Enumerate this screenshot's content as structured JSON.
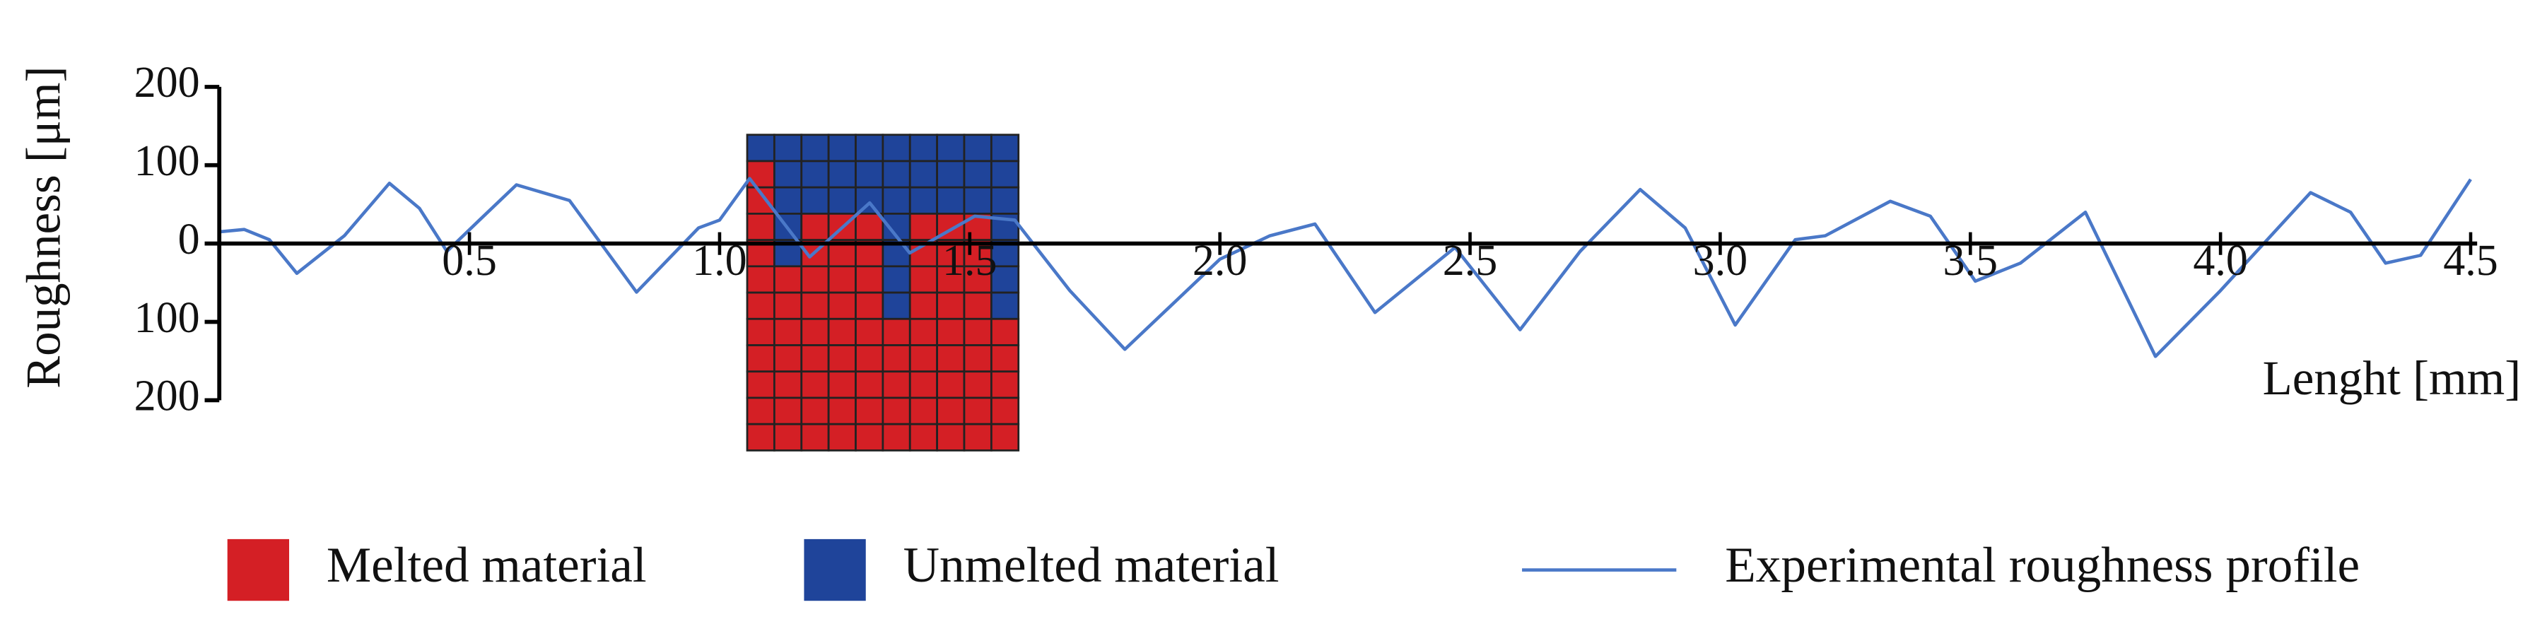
{
  "chart_data": {
    "type": "line",
    "x_label": "Lenght [mm]",
    "y_label": "Roughness [μm]",
    "xlim": [
      0,
      4.5
    ],
    "ylim": [
      -200,
      200
    ],
    "xticks": [
      0.5,
      {
        "value": 1,
        "label": "1.0"
      },
      1.5,
      {
        "value": 2,
        "label": "2.0"
      },
      2.5,
      {
        "value": 3,
        "label": "3.0"
      },
      3.5,
      {
        "value": 4,
        "label": "4.0"
      },
      4.5
    ],
    "yticks": [
      200,
      100,
      0,
      {
        "value": -100,
        "label": "100"
      },
      {
        "value": -200,
        "label": "200"
      }
    ],
    "legend_items": [
      {
        "name": "Melted material",
        "color": "#d41f25"
      },
      {
        "name": "Unmelted material",
        "color": "#1f449a"
      }
    ],
    "x": [
      0,
      0.05,
      0.1,
      0.155,
      0.25,
      0.34,
      0.4,
      0.455,
      0.52,
      0.594,
      0.7,
      0.834,
      0.958,
      1.0,
      1.06,
      1.18,
      1.3,
      1.38,
      1.51,
      1.59,
      1.7,
      1.81,
      2.0,
      2.1,
      2.19,
      2.31,
      2.47,
      2.6,
      2.72,
      2.84,
      2.93,
      3.03,
      3.15,
      3.21,
      3.34,
      3.42,
      3.51,
      3.6,
      3.73,
      3.87,
      4.0,
      4.18,
      4.26,
      4.33,
      4.4,
      4.5
    ],
    "series": [
      {
        "name": "Experimental roughness profile",
        "color": "#4a78c8",
        "values": [
          15,
          18,
          5,
          -38,
          10,
          77,
          45,
          -10,
          30,
          75,
          55,
          -62,
          20,
          30,
          83,
          -17,
          52,
          -12,
          35,
          30,
          -60,
          -135,
          -20,
          10,
          25,
          -88,
          -5,
          -110,
          -10,
          69,
          20,
          -104,
          5,
          10,
          54,
          35,
          -48,
          -25,
          40,
          -144,
          -60,
          65,
          40,
          -25,
          -15,
          82
        ]
      }
    ]
  }
}
